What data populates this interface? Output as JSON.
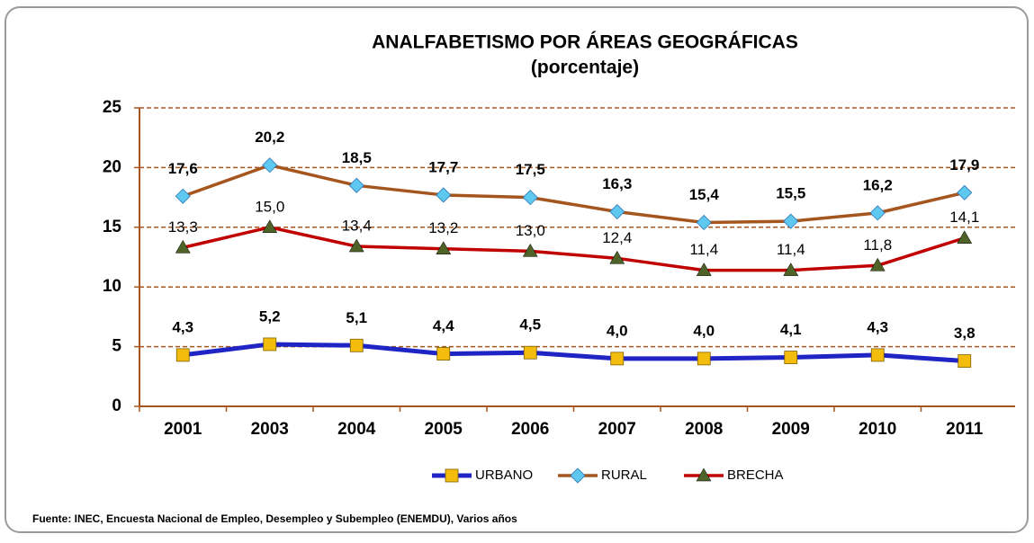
{
  "chart_data": {
    "type": "line",
    "title": "ANALFABETISMO POR ÁREAS GEOGRÁFICAS",
    "subtitle": "(porcentaje)",
    "source": "Fuente: INEC, Encuesta Nacional de Empleo, Desempleo y Subempleo (ENEMDU), Varios años",
    "categories": [
      "2001",
      "2003",
      "2004",
      "2005",
      "2006",
      "2007",
      "2008",
      "2009",
      "2010",
      "2011"
    ],
    "ylim": [
      0,
      25
    ],
    "yticks": [
      0,
      5,
      10,
      15,
      20,
      25
    ],
    "grid": true,
    "legend": "bottom",
    "series": [
      {
        "name": "URBANO",
        "color": "#1f24c4",
        "marker": "square",
        "marker_color": "#f4bd0e",
        "values": [
          4.3,
          5.2,
          5.1,
          4.4,
          4.5,
          4.0,
          4.0,
          4.1,
          4.3,
          3.8
        ],
        "value_labels": [
          "4,3",
          "5,2",
          "5,1",
          "4,4",
          "4,5",
          "4,0",
          "4,0",
          "4,1",
          "4,3",
          "3,8"
        ]
      },
      {
        "name": "RURAL",
        "color": "#a5561f",
        "marker": "diamond",
        "marker_color": "#5ec8f0",
        "values": [
          17.6,
          20.2,
          18.5,
          17.7,
          17.5,
          16.3,
          15.4,
          15.5,
          16.2,
          17.9
        ],
        "value_labels": [
          "17,6",
          "20,2",
          "18,5",
          "17,7",
          "17,5",
          "16,3",
          "15,4",
          "15,5",
          "16,2",
          "17,9"
        ]
      },
      {
        "name": "BRECHA",
        "color": "#c00000",
        "marker": "triangle",
        "marker_color": "#4f6228",
        "values": [
          13.3,
          15.0,
          13.4,
          13.2,
          13.0,
          12.4,
          11.4,
          11.4,
          11.8,
          14.1
        ],
        "value_labels": [
          "13,3",
          "15,0",
          "13,4",
          "13,2",
          "13,0",
          "12,4",
          "11,4",
          "11,4",
          "11,8",
          "14,1"
        ]
      }
    ]
  }
}
